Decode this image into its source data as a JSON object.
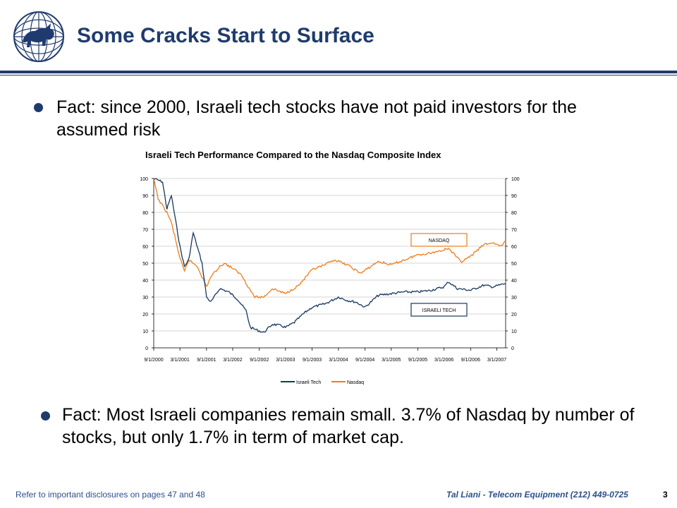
{
  "slide": {
    "title": "Some Cracks Start to Surface",
    "bullets": [
      "Fact: since 2000, Israeli tech stocks have not paid investors for the assumed risk",
      "Fact: Most Israeli companies remain small. 3.7% of Nasdaq by number of stocks, but only 1.7% in term of market cap."
    ],
    "footer_left": "Refer to important disclosures on pages 47 and 48",
    "footer_right": "Tal Liani - Telecom Equipment (212) 449-0725",
    "page_number": "3"
  },
  "colors": {
    "brand": "#1f3b6e",
    "israeli_tech": "#17375e",
    "nasdaq": "#ed7d1d"
  },
  "logo": {
    "icon": "bull-globe-logo-icon"
  },
  "chart_data": {
    "type": "line",
    "title": "Israeli Tech Performance Compared to the Nasdaq Composite Index",
    "x_tick_labels": [
      "9/1/2000",
      "3/1/2001",
      "9/1/2001",
      "3/1/2002",
      "9/1/2002",
      "3/1/2003",
      "9/1/2003",
      "3/1/2004",
      "9/1/2004",
      "3/1/2005",
      "9/1/2005",
      "3/1/2006",
      "9/1/2006",
      "3/1/2007"
    ],
    "x_range": [
      "9/1/2000",
      "5/1/2007"
    ],
    "y_left_range": [
      0,
      100
    ],
    "y_right_range": [
      0,
      100
    ],
    "y_ticks": [
      0,
      10,
      20,
      30,
      40,
      50,
      60,
      70,
      80,
      90,
      100
    ],
    "grid": "horizontal",
    "legend_position": "bottom",
    "annotations": [
      "NASDAQ",
      "ISRAELI TECH"
    ],
    "series": [
      {
        "name": "Israeli Tech",
        "x": [
          "9/1/2000",
          "11/1/2000",
          "12/1/2000",
          "1/1/2001",
          "3/1/2001",
          "4/1/2001",
          "5/1/2001",
          "6/1/2001",
          "8/1/2001",
          "9/1/2001",
          "10/1/2001",
          "12/1/2001",
          "2/1/2002",
          "4/1/2002",
          "6/1/2002",
          "7/1/2002",
          "9/1/2002",
          "10/1/2002",
          "12/1/2002",
          "2/1/2003",
          "3/1/2003",
          "5/1/2003",
          "7/1/2003",
          "9/1/2003",
          "12/1/2003",
          "3/1/2004",
          "5/1/2004",
          "7/1/2004",
          "9/1/2004",
          "12/1/2004",
          "3/1/2005",
          "6/1/2005",
          "9/1/2005",
          "12/1/2005",
          "3/1/2006",
          "4/1/2006",
          "6/1/2006",
          "9/1/2006",
          "12/1/2006",
          "2/1/2007",
          "5/1/2007"
        ],
        "values": [
          100,
          98,
          82,
          90,
          60,
          48,
          52,
          68,
          50,
          30,
          27,
          35,
          33,
          29,
          22,
          12,
          10,
          9,
          14,
          13,
          12,
          15,
          20,
          24,
          26,
          30,
          28,
          27,
          24,
          31,
          32,
          33,
          33,
          34,
          36,
          39,
          35,
          34,
          37,
          36,
          38
        ]
      },
      {
        "name": "Nasdaq",
        "x": [
          "9/1/2000",
          "10/1/2000",
          "12/1/2000",
          "1/1/2001",
          "3/1/2001",
          "4/1/2001",
          "5/1/2001",
          "7/1/2001",
          "9/1/2001",
          "10/1/2001",
          "12/1/2001",
          "1/1/2002",
          "3/1/2002",
          "5/1/2002",
          "7/1/2002",
          "8/1/2002",
          "10/1/2002",
          "12/1/2002",
          "3/1/2003",
          "6/1/2003",
          "9/1/2003",
          "12/1/2003",
          "2/1/2004",
          "5/1/2004",
          "8/1/2004",
          "12/1/2004",
          "3/1/2005",
          "6/1/2005",
          "9/1/2005",
          "12/1/2005",
          "3/1/2006",
          "4/1/2006",
          "6/1/2006",
          "7/1/2006",
          "9/1/2006",
          "12/1/2006",
          "2/1/2007",
          "4/1/2007",
          "5/1/2007"
        ],
        "values": [
          100,
          88,
          80,
          74,
          53,
          45,
          52,
          48,
          36,
          42,
          48,
          50,
          47,
          43,
          34,
          30,
          30,
          35,
          32,
          37,
          46,
          49,
          52,
          49,
          44,
          51,
          49,
          52,
          55,
          56,
          58,
          59,
          53,
          51,
          54,
          61,
          62,
          60,
          63
        ]
      }
    ]
  }
}
